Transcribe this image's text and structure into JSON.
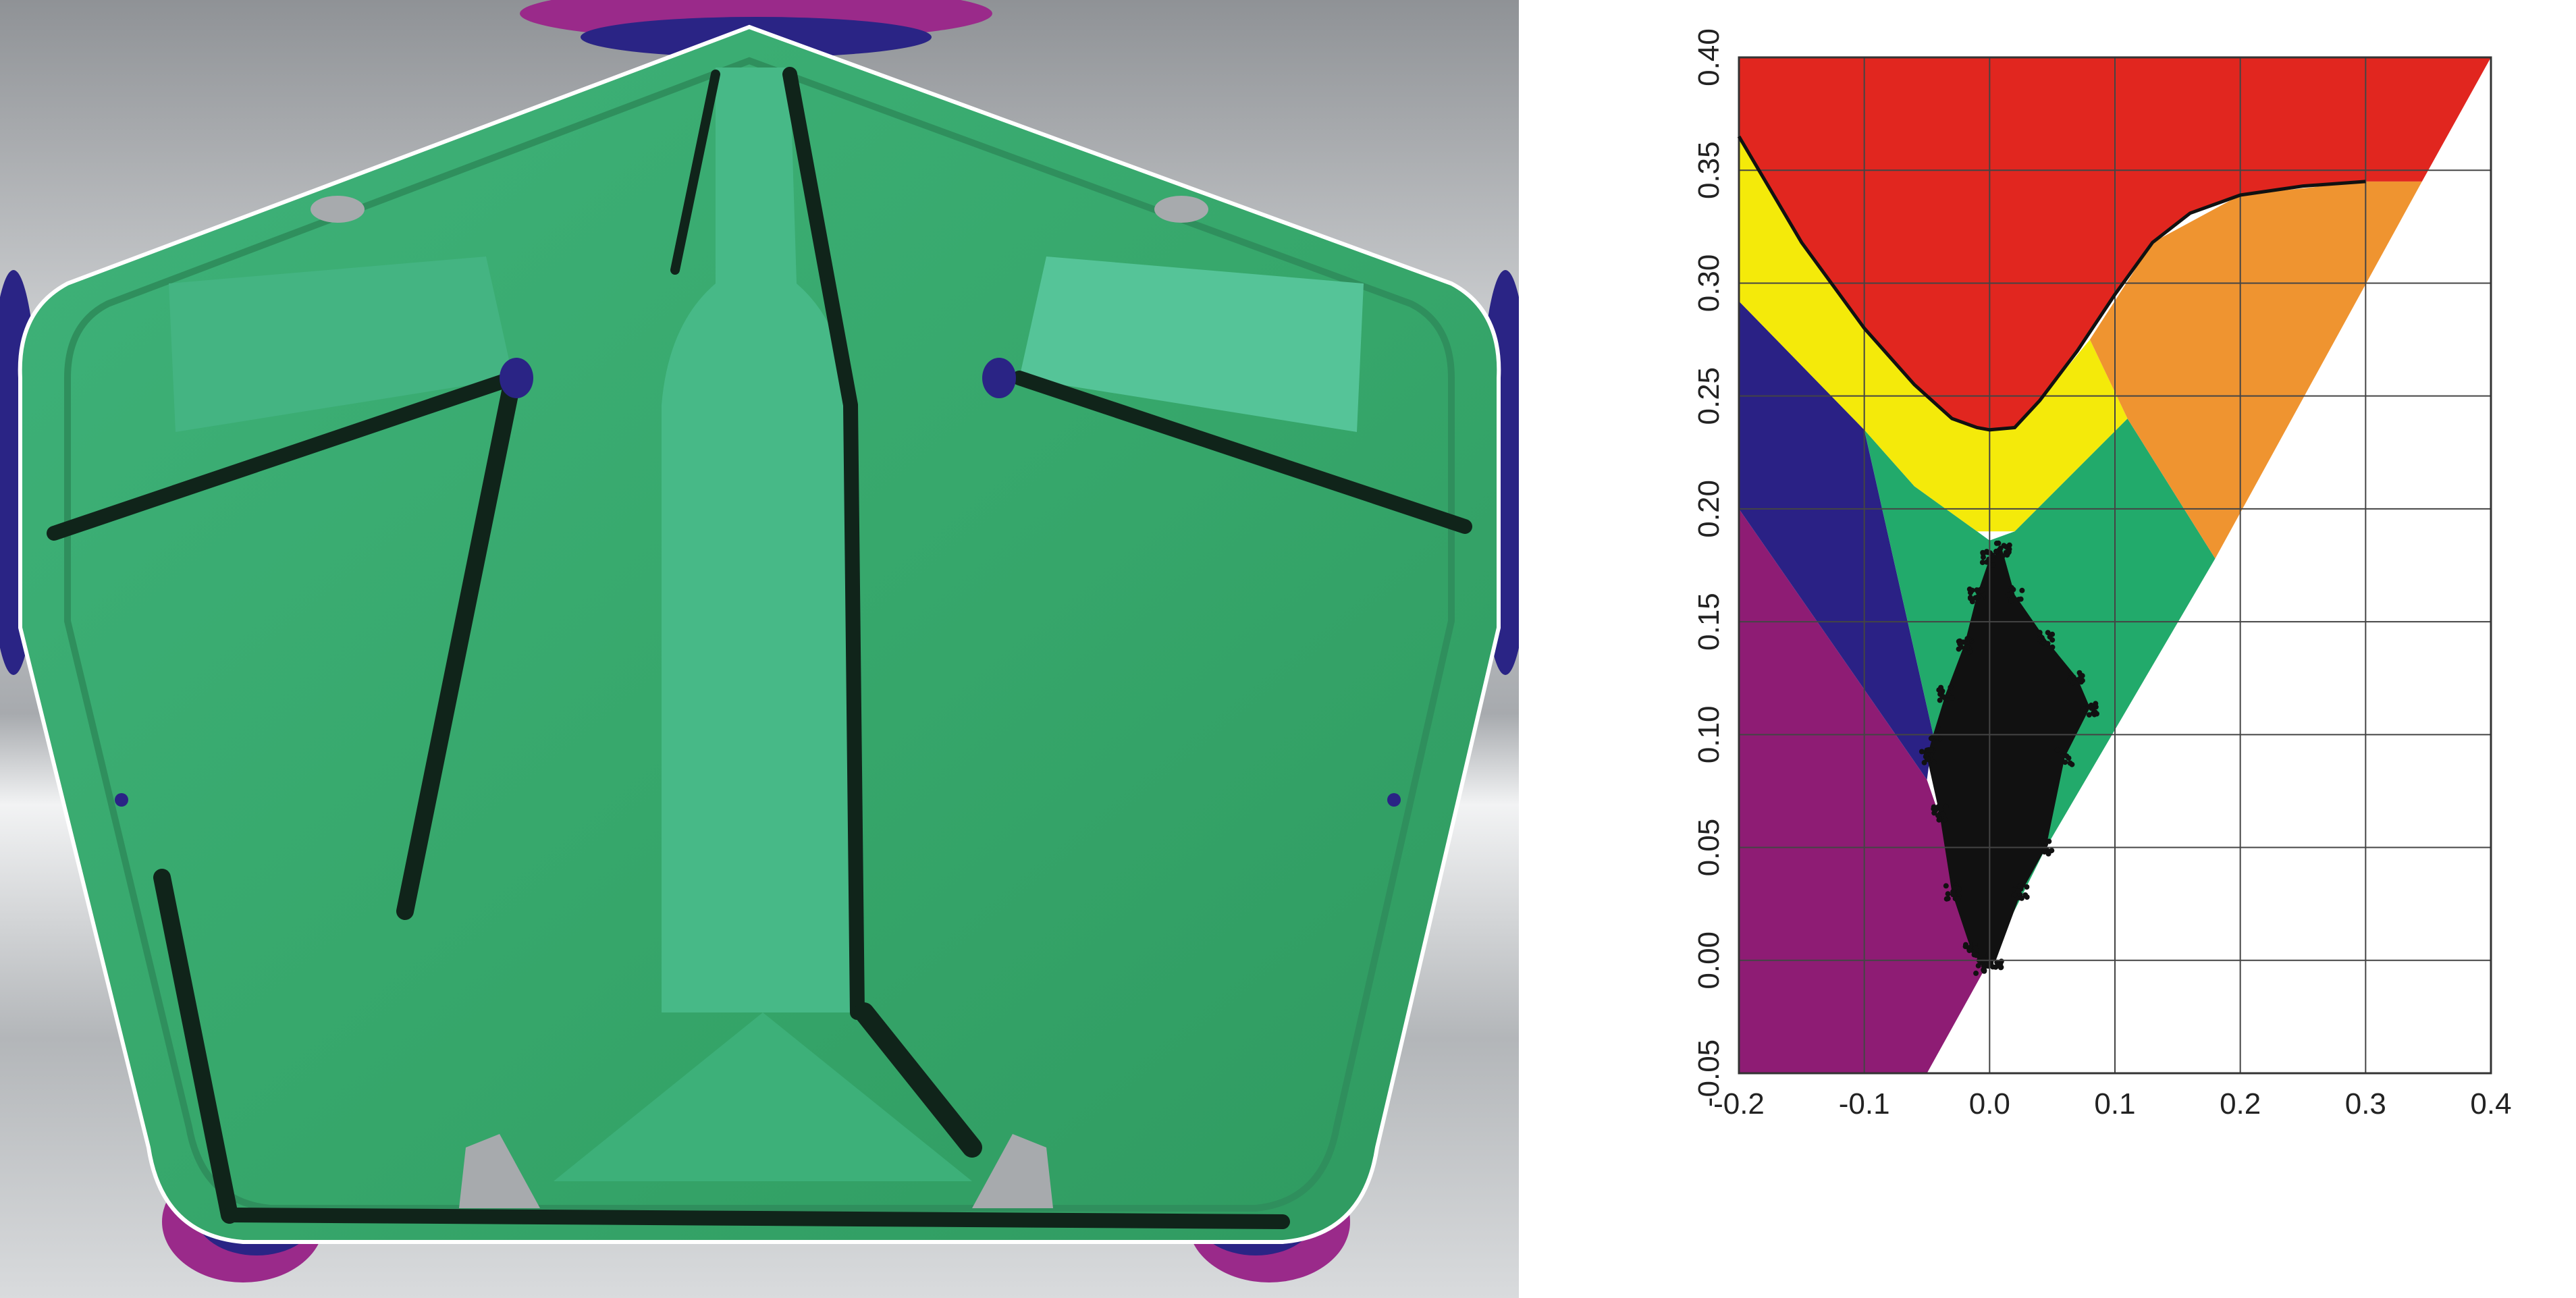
{
  "colors": {
    "panel_green": "#3aa86b",
    "panel_green_light": "#4dbf8a",
    "panel_dark_crease": "#10241a",
    "background_gray": "#b8babd",
    "thinning_blue": "#2a2485",
    "thinning_magenta": "#9a2a8a",
    "region_red": "#e1261f",
    "region_orange": "#ef9430",
    "region_yellow": "#f4ea0a",
    "region_green": "#22aa6b",
    "region_blue": "#2a2185",
    "region_purple": "#8e1c74",
    "points_black": "#111111",
    "grid": "#444444"
  },
  "simulation_view": {
    "description_icon": "stamped-sheet-metal-panel-icon"
  },
  "chart_data": {
    "type": "scatter",
    "title": "",
    "xlabel": "",
    "ylabel": "",
    "xlim": [
      -0.2,
      0.4
    ],
    "ylim": [
      -0.05,
      0.4
    ],
    "x_ticks": [
      "-0.2",
      "-0.1",
      "0.0",
      "0.1",
      "0.2",
      "0.3",
      "0.4"
    ],
    "y_ticks": [
      "-0.05",
      "0.00",
      "0.05",
      "0.10",
      "0.15",
      "0.20",
      "0.25",
      "0.30",
      "0.35",
      "0.40"
    ],
    "x_tick_values": [
      -0.2,
      -0.1,
      0.0,
      0.1,
      0.2,
      0.3,
      0.4
    ],
    "y_tick_values": [
      -0.05,
      0.0,
      0.05,
      0.1,
      0.15,
      0.2,
      0.25,
      0.3,
      0.35,
      0.4
    ],
    "grid": true,
    "forming_limit_curve": [
      [
        -0.2,
        0.365
      ],
      [
        -0.15,
        0.318
      ],
      [
        -0.1,
        0.28
      ],
      [
        -0.06,
        0.255
      ],
      [
        -0.03,
        0.24
      ],
      [
        -0.01,
        0.236
      ],
      [
        0.0,
        0.235
      ],
      [
        0.02,
        0.236
      ],
      [
        0.04,
        0.248
      ],
      [
        0.07,
        0.27
      ],
      [
        0.1,
        0.295
      ],
      [
        0.13,
        0.318
      ],
      [
        0.16,
        0.331
      ],
      [
        0.2,
        0.339
      ],
      [
        0.25,
        0.343
      ],
      [
        0.3,
        0.345
      ]
    ],
    "regions": [
      {
        "name": "red",
        "color": "#e1261f"
      },
      {
        "name": "orange",
        "color": "#ef9430"
      },
      {
        "name": "yellow",
        "color": "#f4ea0a"
      },
      {
        "name": "green",
        "color": "#22aa6b"
      },
      {
        "name": "blue",
        "color": "#2a2185"
      },
      {
        "name": "purple",
        "color": "#8e1c74"
      }
    ],
    "point_cloud_outline": [
      [
        0.01,
        0.182
      ],
      [
        0.02,
        0.162
      ],
      [
        0.045,
        0.142
      ],
      [
        0.07,
        0.125
      ],
      [
        0.08,
        0.112
      ],
      [
        0.06,
        0.09
      ],
      [
        0.045,
        0.05
      ],
      [
        0.025,
        0.03
      ],
      [
        0.005,
        0.0
      ],
      [
        -0.005,
        -0.003
      ],
      [
        -0.015,
        0.005
      ],
      [
        -0.03,
        0.03
      ],
      [
        -0.04,
        0.065
      ],
      [
        -0.05,
        0.09
      ],
      [
        -0.045,
        0.1
      ],
      [
        -0.035,
        0.118
      ],
      [
        -0.02,
        0.14
      ],
      [
        -0.01,
        0.162
      ],
      [
        0.0,
        0.178
      ]
    ]
  }
}
